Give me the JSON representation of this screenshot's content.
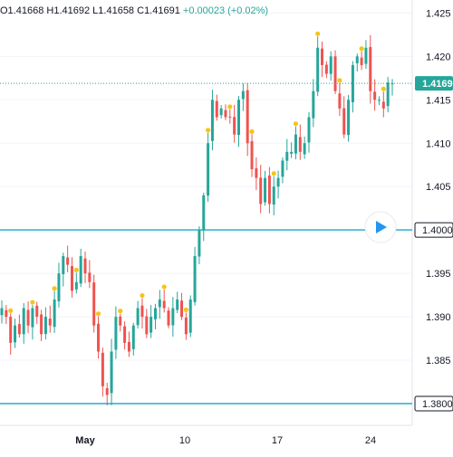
{
  "header": {
    "open_label": "O1.41668",
    "high_label": "H1.41692",
    "low_label": "L1.41658",
    "close_label": "C1.41691",
    "change_label": "+0.00023 (+0.02%)"
  },
  "colors": {
    "up": "#26a69a",
    "down": "#ef5350",
    "hline": "#5bc0d8",
    "dot": "#f5c518",
    "last_price": "#26a69a",
    "play": "#2196f3",
    "grid": "#f0f3fa"
  },
  "chart_data": {
    "type": "candlestick",
    "y_ticks": [
      "1.425",
      "1.420",
      "1.415",
      "1.410",
      "1.405",
      "1.400",
      "1.395",
      "1.390",
      "1.385",
      "1.380"
    ],
    "x_ticks": [
      "May",
      "10",
      "17",
      "24"
    ],
    "ylim": [
      1.3775,
      1.4265
    ],
    "horizontal_lines": [
      {
        "value": 1.4,
        "label": "1.4000"
      },
      {
        "value": 1.38,
        "label": "1.3800"
      }
    ],
    "last_price": {
      "value": 1.4169,
      "label": "1.4169"
    },
    "closes": [
      1.391,
      1.39,
      1.387,
      1.389,
      1.388,
      1.391,
      1.389,
      1.391,
      1.39,
      1.388,
      1.39,
      1.389,
      1.392,
      1.395,
      1.397,
      1.396,
      1.393,
      1.394,
      1.397,
      1.395,
      1.394,
      1.389,
      1.386,
      1.382,
      1.381,
      1.386,
      1.39,
      1.389,
      1.387,
      1.386,
      1.389,
      1.391,
      1.39,
      1.388,
      1.39,
      1.391,
      1.392,
      1.391,
      1.389,
      1.391,
      1.392,
      1.39,
      1.388,
      1.392,
      1.397,
      1.4,
      1.404,
      1.41,
      1.415,
      1.413,
      1.414,
      1.413,
      1.413,
      1.411,
      1.415,
      1.416,
      1.41,
      1.407,
      1.406,
      1.403,
      1.406,
      1.403,
      1.405,
      1.406,
      1.408,
      1.409,
      1.409,
      1.411,
      1.409,
      1.41,
      1.413,
      1.416,
      1.421,
      1.419,
      1.418,
      1.42,
      1.416,
      1.414,
      1.411,
      1.415,
      1.419,
      1.42,
      1.419,
      1.421,
      1.416,
      1.415,
      1.415,
      1.414,
      1.417,
      1.4169
    ]
  }
}
